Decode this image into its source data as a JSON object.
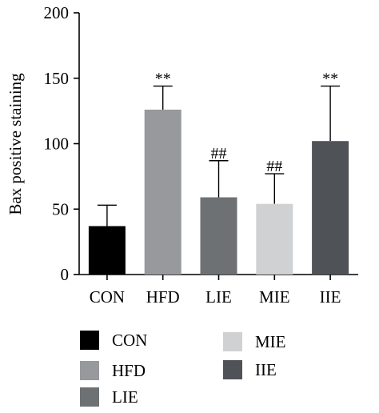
{
  "chart_data": {
    "type": "bar",
    "title": "",
    "xlabel": "",
    "ylabel": "Bax positive staining",
    "ylim": [
      0,
      200
    ],
    "yticks": [
      0,
      50,
      100,
      150,
      200
    ],
    "grid": false,
    "legend_position": "bottom",
    "categories": [
      "CON",
      "HFD",
      "LIE",
      "MIE",
      "IIE"
    ],
    "values": [
      37,
      126,
      59,
      54,
      102
    ],
    "error_upper": [
      53,
      144,
      87,
      77,
      144
    ],
    "annotations": [
      "",
      "**",
      "##",
      "##",
      "**"
    ],
    "colors": [
      "#000000",
      "#97999c",
      "#6e7174",
      "#cfd1d2",
      "#4f5256"
    ]
  },
  "legend": {
    "items": [
      {
        "label": "CON",
        "color": "#000000"
      },
      {
        "label": "HFD",
        "color": "#97999c"
      },
      {
        "label": "LIE",
        "color": "#6e7174"
      },
      {
        "label": "MIE",
        "color": "#cfd1d2"
      },
      {
        "label": "IIE",
        "color": "#4f5256"
      }
    ]
  }
}
